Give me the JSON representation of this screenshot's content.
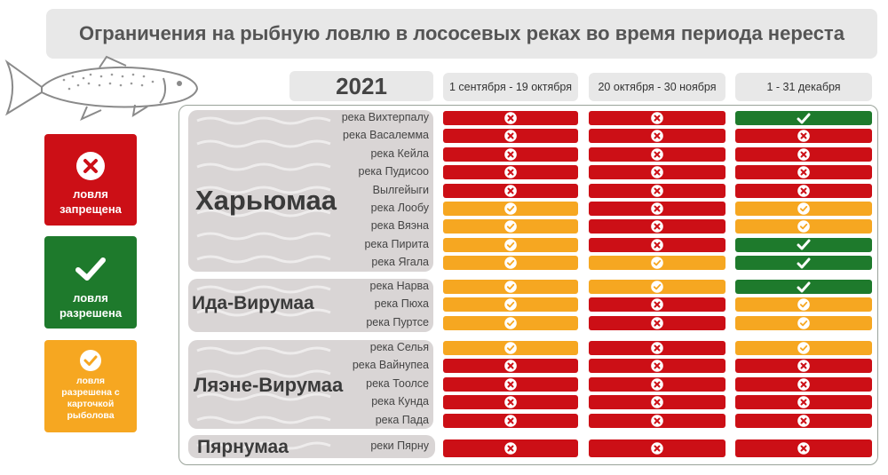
{
  "title": "Ограничения на рыбную ловлю в лососевых реках во время периода нереста",
  "year": "2021",
  "periods": [
    "1 сентября - 19 октября",
    "20 октября - 30 ноября",
    "1 - 31 декабря"
  ],
  "legend": [
    {
      "status": "red",
      "label": "ловля запрещена",
      "line1": "ловля",
      "line2": "запрещена",
      "icon": "x-icon"
    },
    {
      "status": "green",
      "label": "ловля разрешена",
      "line1": "ловля",
      "line2": "разрешена",
      "icon": "check-icon"
    },
    {
      "status": "orange",
      "label": "ловля разрешена с карточкой рыболова",
      "line1": "ловля",
      "line2": "разрешена с",
      "line3": "карточкой",
      "line4": "рыболова",
      "icon": "check-icon"
    }
  ],
  "colors": {
    "red": "#cc0f16",
    "green": "#1e7a2c",
    "orange": "#f6a721",
    "panel": "#d9d5d5",
    "header": "#e8e8e8"
  },
  "regions": [
    {
      "name": "Харьюмаа",
      "rivers": [
        {
          "name": "река Вихтерпалу",
          "status": [
            "red",
            "red",
            "green"
          ]
        },
        {
          "name": "река Васалемма",
          "status": [
            "red",
            "red",
            "red"
          ]
        },
        {
          "name": "река Кейла",
          "status": [
            "red",
            "red",
            "red"
          ]
        },
        {
          "name": "река Пудисоо",
          "status": [
            "red",
            "red",
            "red"
          ]
        },
        {
          "name": "Вылгейыги",
          "status": [
            "red",
            "red",
            "red"
          ]
        },
        {
          "name": "река Лообу",
          "status": [
            "orange",
            "red",
            "orange"
          ]
        },
        {
          "name": "река Вяэна",
          "status": [
            "orange",
            "red",
            "orange"
          ]
        },
        {
          "name": "река Пирита",
          "status": [
            "orange",
            "red",
            "green"
          ]
        },
        {
          "name": "река Ягала",
          "status": [
            "orange",
            "orange",
            "green"
          ]
        }
      ]
    },
    {
      "name": "Ида-Вирумаа",
      "rivers": [
        {
          "name": "река Нарва",
          "status": [
            "orange",
            "orange",
            "green"
          ]
        },
        {
          "name": "река Пюха",
          "status": [
            "orange",
            "red",
            "orange"
          ]
        },
        {
          "name": "река Пуртсе",
          "status": [
            "orange",
            "red",
            "orange"
          ]
        }
      ]
    },
    {
      "name": "Ляэне-Вирумаа",
      "rivers": [
        {
          "name": "река Селья",
          "status": [
            "orange",
            "red",
            "orange"
          ]
        },
        {
          "name": "река Вайнупеа",
          "status": [
            "red",
            "red",
            "red"
          ]
        },
        {
          "name": "река Тоолсе",
          "status": [
            "red",
            "red",
            "red"
          ]
        },
        {
          "name": "река Кунда",
          "status": [
            "red",
            "red",
            "red"
          ]
        },
        {
          "name": "река Пада",
          "status": [
            "red",
            "red",
            "red"
          ]
        }
      ]
    },
    {
      "name": "Пярнумаа",
      "rivers": [
        {
          "name": "реки Пярну",
          "status": [
            "red",
            "red",
            "red"
          ]
        }
      ]
    }
  ]
}
